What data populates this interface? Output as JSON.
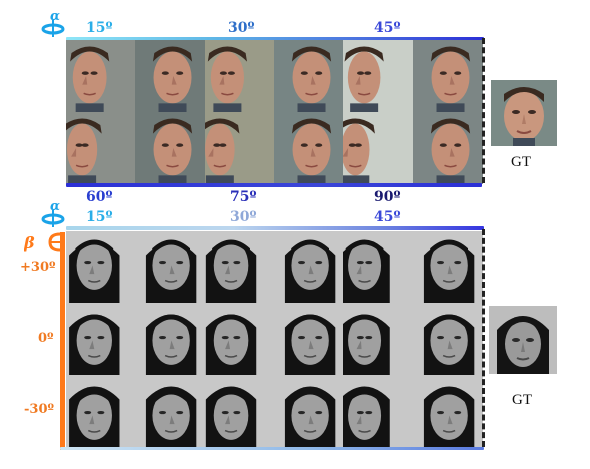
{
  "top_panel": {
    "rotation_symbol": "α",
    "top_angles": [
      "15º",
      "30º",
      "45º"
    ],
    "bottom_angles": [
      "60º",
      "75º",
      "90º"
    ],
    "gt_label": "GT",
    "colors": {
      "bar_start": "#7ee0f5",
      "bar_end": "#2b2fd6",
      "icon": "#1aa3e8"
    }
  },
  "bottom_panel": {
    "rotation_symbol_alpha": "α",
    "rotation_symbol_beta": "β",
    "top_angles": [
      "15º",
      "30º",
      "45º"
    ],
    "row_labels": [
      "+30º",
      "0º",
      "-30º"
    ],
    "gt_label": "GT",
    "colors": {
      "beta_axis": "#ff7a1a",
      "bar_end": "#3535e0"
    }
  }
}
